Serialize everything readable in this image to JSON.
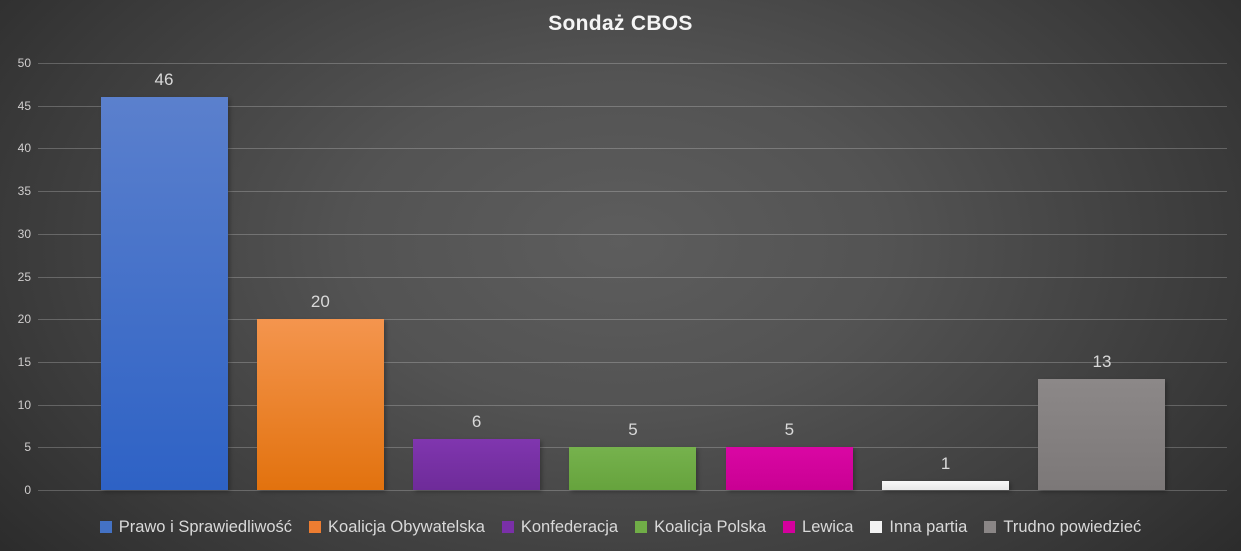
{
  "chart_data": {
    "type": "bar",
    "title": "Sondaż CBOS",
    "categories": [
      "Prawo i Sprawiedliwość",
      "Koalicja Obywatelska",
      "Konfederacja",
      "Koalicja Polska",
      "Lewica",
      "Inna partia",
      "Trudno powiedzieć"
    ],
    "values": [
      46,
      20,
      6,
      5,
      5,
      1,
      13
    ],
    "xlabel": "",
    "ylabel": "",
    "ylim": [
      0,
      50
    ],
    "yticks": [
      0,
      5,
      10,
      15,
      20,
      25,
      30,
      35,
      40,
      45,
      50
    ],
    "grid": "horizontal",
    "legend_position": "bottom",
    "value_labels_shown": true,
    "series": [
      {
        "name": "Prawo i Sprawiedliwość",
        "value": 46,
        "color": "#4472c4",
        "color_top": "#5b80cd",
        "color_bottom": "#2e62c5"
      },
      {
        "name": "Koalicja Obywatelska",
        "value": 20,
        "color": "#ed7d31",
        "color_top": "#f4954e",
        "color_bottom": "#e2720e"
      },
      {
        "name": "Konfederacja",
        "value": 6,
        "color": "#7a30a8",
        "color_top": "#8036af",
        "color_bottom": "#6e2b99"
      },
      {
        "name": "Koalicja Polska",
        "value": 5,
        "color": "#70ad47",
        "color_top": "#76b24d",
        "color_bottom": "#66a33d"
      },
      {
        "name": "Lewica",
        "value": 5,
        "color": "#d4009d",
        "color_top": "#da07a4",
        "color_bottom": "#c90093"
      },
      {
        "name": "Inna partia",
        "value": 1,
        "color": "#f2f2f2",
        "color_top": "#f8f8f8",
        "color_bottom": "#e8e8e8"
      },
      {
        "name": "Trudno powiedzieć",
        "value": 13,
        "color": "#8a8686",
        "color_top": "#8c8888",
        "color_bottom": "#7c7878"
      }
    ]
  },
  "colors": {
    "background_center": "#5d5d5d",
    "background_edge": "#222222",
    "title_text": "#f5f5f5",
    "data_label_text": "#d9d9d9",
    "tick_label_text": "#d0cece",
    "legend_text": "#d9d9d9",
    "gridline": "rgba(255,255,255,0.22)"
  }
}
